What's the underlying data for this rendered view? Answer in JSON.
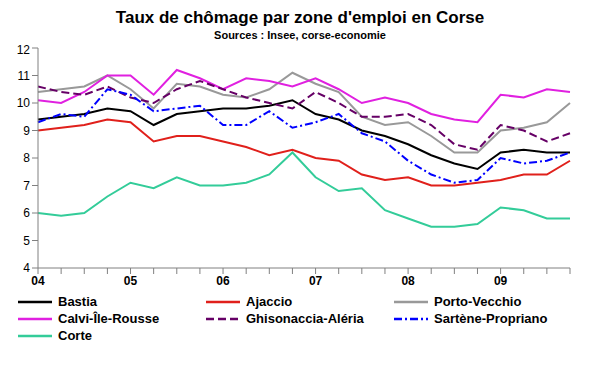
{
  "chart_data": {
    "type": "line",
    "title": "Taux de chômage par zone d'emploi en Corse",
    "subtitle": "Sources : Insee, corse-economie",
    "categories": [
      "04",
      null,
      null,
      null,
      "05",
      null,
      null,
      null,
      "06",
      null,
      null,
      null,
      "07",
      null,
      null,
      null,
      "08",
      null,
      null,
      null,
      "09",
      null,
      null,
      null
    ],
    "ylim": [
      4,
      12
    ],
    "yticks": [
      4,
      5,
      6,
      7,
      8,
      9,
      10,
      11,
      12
    ],
    "grid": false,
    "legend": "bottom",
    "series": [
      {
        "name": "Bastia",
        "color": "#000000",
        "line_style": "solid",
        "values": [
          9.4,
          9.5,
          9.6,
          9.8,
          9.7,
          9.2,
          9.6,
          9.7,
          9.8,
          9.8,
          9.9,
          10.1,
          9.6,
          9.4,
          9.0,
          8.8,
          8.5,
          8.1,
          7.8,
          7.6,
          8.2,
          8.3,
          8.2,
          8.2
        ]
      },
      {
        "name": "Ajaccio",
        "color": "#e0201b",
        "line_style": "solid",
        "values": [
          9.0,
          9.1,
          9.2,
          9.4,
          9.3,
          8.6,
          8.8,
          8.8,
          8.6,
          8.4,
          8.1,
          8.3,
          8.0,
          7.9,
          7.4,
          7.2,
          7.3,
          7.0,
          7.0,
          7.1,
          7.2,
          7.4,
          7.4,
          7.9
        ]
      },
      {
        "name": "Porto-Vecchio",
        "color": "#999999",
        "line_style": "solid",
        "values": [
          10.4,
          10.5,
          10.6,
          11.0,
          10.5,
          9.8,
          10.7,
          10.6,
          10.3,
          10.2,
          10.5,
          11.1,
          10.7,
          10.4,
          9.5,
          9.2,
          9.3,
          8.8,
          8.2,
          8.2,
          9.0,
          9.1,
          9.3,
          10.0
        ]
      },
      {
        "name": "Calvi-Île-Rousse",
        "color": "#e020e0",
        "line_style": "solid",
        "values": [
          10.1,
          10.0,
          10.4,
          11.0,
          11.0,
          10.3,
          11.2,
          10.9,
          10.5,
          10.9,
          10.8,
          10.6,
          10.9,
          10.5,
          10.0,
          10.2,
          10.0,
          9.6,
          9.4,
          9.3,
          10.3,
          10.2,
          10.5,
          10.4
        ]
      },
      {
        "name": "Ghisonaccia-Aléria",
        "color": "#660066",
        "line_style": "dashed",
        "values": [
          10.6,
          10.4,
          10.3,
          10.6,
          10.2,
          10.0,
          10.5,
          10.8,
          10.5,
          10.2,
          10.0,
          9.8,
          10.4,
          10.0,
          9.5,
          9.5,
          9.6,
          9.2,
          8.5,
          8.3,
          9.2,
          9.0,
          8.6,
          8.9
        ]
      },
      {
        "name": "Sartène-Propriano",
        "color": "#0000ff",
        "line_style": "dashdot",
        "values": [
          9.3,
          9.6,
          9.5,
          10.5,
          10.3,
          9.7,
          9.8,
          9.9,
          9.2,
          9.2,
          9.7,
          9.1,
          9.3,
          9.6,
          8.9,
          8.6,
          7.9,
          7.4,
          7.1,
          7.2,
          8.0,
          7.8,
          7.9,
          8.2
        ]
      },
      {
        "name": "Corte",
        "color": "#33cc99",
        "line_style": "solid",
        "values": [
          6.0,
          5.9,
          6.0,
          6.6,
          7.1,
          6.9,
          7.3,
          7.0,
          7.0,
          7.1,
          7.4,
          8.2,
          7.3,
          6.8,
          6.9,
          6.1,
          5.8,
          5.5,
          5.5,
          5.6,
          6.2,
          6.1,
          5.8,
          5.8
        ]
      }
    ]
  }
}
